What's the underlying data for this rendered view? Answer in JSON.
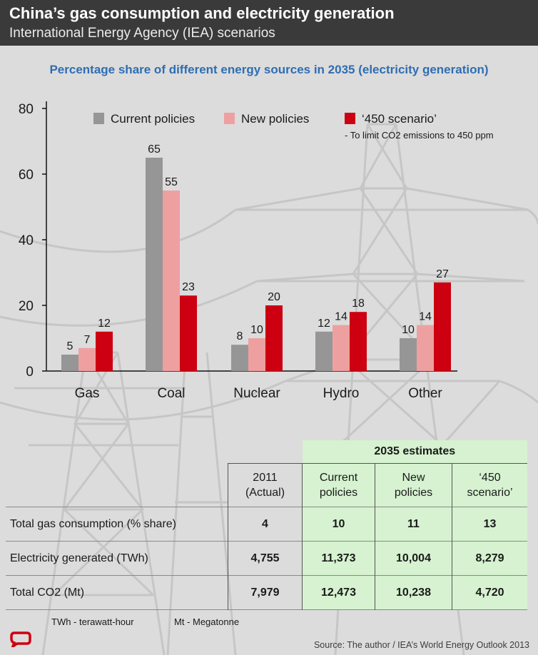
{
  "header": {
    "title": "China’s gas consumption and electricity generation",
    "subtitle": "International Energy Agency (IEA) scenarios"
  },
  "chart_data": {
    "type": "bar",
    "title": "Percentage share of different energy sources in 2035 (electricity generation)",
    "categories": [
      "Gas",
      "Coal",
      "Nuclear",
      "Hydro",
      "Other"
    ],
    "series": [
      {
        "name": "Current policies",
        "color": "#969696",
        "values": [
          5,
          65,
          8,
          12,
          10
        ]
      },
      {
        "name": "New policies",
        "color": "#eea0a0",
        "values": [
          7,
          55,
          10,
          14,
          14
        ]
      },
      {
        "name": "‘450 scenario’",
        "color": "#cc0011",
        "values": [
          12,
          23,
          20,
          18,
          27
        ]
      }
    ],
    "legend_note": "- To limit CO2 emissions to 450 ppm",
    "ylim": [
      0,
      80
    ],
    "yticks": [
      0,
      20,
      40,
      60,
      80
    ],
    "xlabel": "",
    "ylabel": "",
    "legend_position": "top",
    "grid": false
  },
  "table": {
    "group_header": "2035 estimates",
    "col_2011": [
      "2011",
      "(Actual)"
    ],
    "col_current": [
      "Current",
      "policies"
    ],
    "col_new": [
      "New",
      "policies"
    ],
    "col_450": [
      "‘450",
      "scenario’"
    ],
    "rows": [
      {
        "label": "Total gas consumption (% share)",
        "values": [
          "4",
          "10",
          "11",
          "13"
        ]
      },
      {
        "label": "Electricity generated (TWh)",
        "values": [
          "4,755",
          "11,373",
          "10,004",
          "8,279"
        ]
      },
      {
        "label": "Total CO2 (Mt)",
        "values": [
          "7,979",
          "12,473",
          "10,238",
          "4,720"
        ]
      }
    ]
  },
  "footnotes": {
    "twh": "TWh - terawatt-hour",
    "mt": "Mt - Megatonne"
  },
  "source": "Source: The author / IEA’s World Energy Outlook 2013",
  "icons": {
    "logo": "the-conversation-logo-icon",
    "background": "power-pylon-icon"
  }
}
